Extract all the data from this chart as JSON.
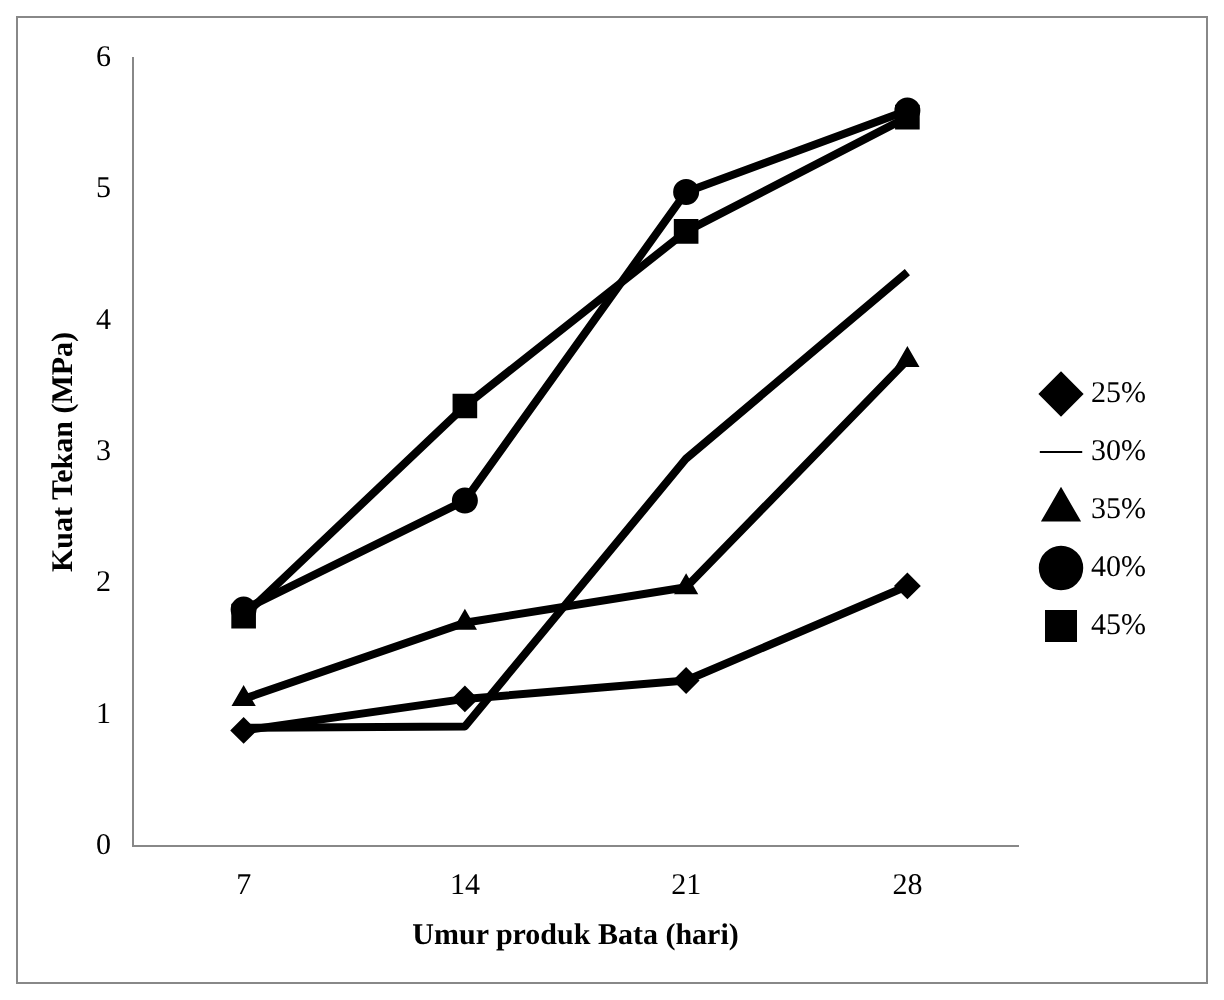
{
  "chart_data": {
    "type": "line",
    "xlabel": "Umur produk Bata (hari)",
    "ylabel": "Kuat Tekan (MPa)",
    "categories": [
      "7",
      "14",
      "21",
      "28"
    ],
    "series": [
      {
        "name": "25%",
        "color": "#000000",
        "marker": "diamond",
        "values": [
          0.88,
          1.12,
          1.26,
          1.98
        ]
      },
      {
        "name": "30%",
        "color": "#000000",
        "marker": "none",
        "values": [
          0.9,
          0.91,
          2.95,
          4.37
        ]
      },
      {
        "name": "35%",
        "color": "#000000",
        "marker": "triangle",
        "values": [
          1.12,
          1.7,
          1.97,
          3.7
        ]
      },
      {
        "name": "40%",
        "color": "#000000",
        "marker": "circle",
        "values": [
          1.8,
          2.63,
          4.98,
          5.6
        ]
      },
      {
        "name": "45%",
        "color": "#000000",
        "marker": "square",
        "values": [
          1.75,
          3.35,
          4.68,
          5.55
        ]
      }
    ],
    "ylim": [
      0,
      6
    ],
    "yticks": [
      0,
      1,
      2,
      3,
      4,
      5,
      6
    ],
    "grid": false,
    "legend": "right"
  }
}
